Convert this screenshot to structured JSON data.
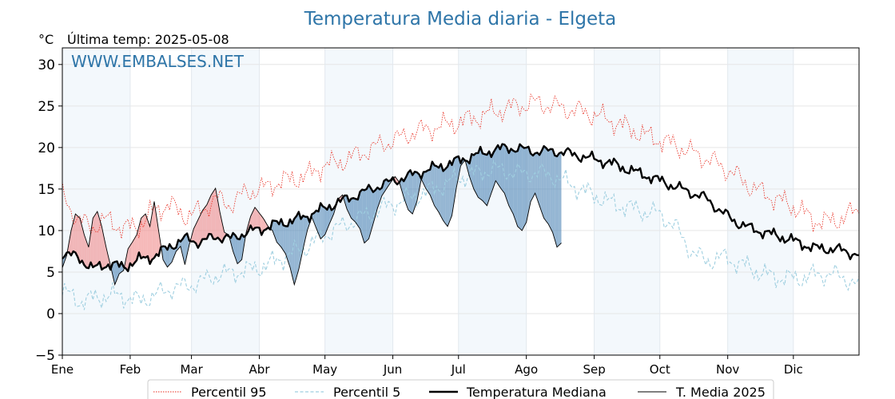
{
  "chart_data": {
    "type": "line",
    "title": "Temperatura Media diaria - Elgeta",
    "unit": "°C",
    "last_temp": "Última temp: 2025-05-08",
    "watermark": "WWW.EMBALSES.NET",
    "ylim": [
      -5,
      32
    ],
    "yticks": [
      -5,
      0,
      5,
      10,
      15,
      20,
      25,
      30
    ],
    "xlim_day": [
      1,
      365
    ],
    "grid": true,
    "legend_position": "bottom",
    "months": [
      "Ene",
      "Feb",
      "Mar",
      "Abr",
      "May",
      "Jun",
      "Jul",
      "Ago",
      "Sep",
      "Oct",
      "Nov",
      "Dic"
    ],
    "series": [
      {
        "name": "Percentil 95",
        "color": "#e8291c",
        "style": "dotted",
        "points": [
          [
            1,
            14.5
          ],
          [
            8,
            11.2
          ],
          [
            15,
            10.5
          ],
          [
            22,
            11.3
          ],
          [
            29,
            10.2
          ],
          [
            36,
            10.6
          ],
          [
            43,
            12.5
          ],
          [
            50,
            13.1
          ],
          [
            57,
            11.8
          ],
          [
            64,
            12.3
          ],
          [
            71,
            13.8
          ],
          [
            78,
            13.2
          ],
          [
            85,
            14.6
          ],
          [
            92,
            15.0
          ],
          [
            99,
            15.8
          ],
          [
            106,
            16.2
          ],
          [
            113,
            16.6
          ],
          [
            120,
            17.8
          ],
          [
            127,
            18.2
          ],
          [
            134,
            18.9
          ],
          [
            141,
            19.7
          ],
          [
            148,
            20.5
          ],
          [
            155,
            21.1
          ],
          [
            162,
            21.9
          ],
          [
            169,
            22.3
          ],
          [
            176,
            22.7
          ],
          [
            183,
            23.1
          ],
          [
            190,
            23.6
          ],
          [
            197,
            24.2
          ],
          [
            204,
            24.7
          ],
          [
            211,
            25.1
          ],
          [
            218,
            25.4
          ],
          [
            225,
            25.0
          ],
          [
            232,
            24.6
          ],
          [
            239,
            24.3
          ],
          [
            246,
            23.8
          ],
          [
            253,
            23.1
          ],
          [
            260,
            22.3
          ],
          [
            267,
            21.5
          ],
          [
            274,
            20.9
          ],
          [
            281,
            20.3
          ],
          [
            288,
            19.5
          ],
          [
            295,
            18.7
          ],
          [
            302,
            17.8
          ],
          [
            309,
            16.6
          ],
          [
            316,
            15.2
          ],
          [
            323,
            14.3
          ],
          [
            330,
            13.5
          ],
          [
            337,
            12.6
          ],
          [
            344,
            11.3
          ],
          [
            351,
            11.0
          ],
          [
            358,
            11.6
          ],
          [
            365,
            12.5
          ]
        ]
      },
      {
        "name": "Percentil 5",
        "color": "#9fcfe0",
        "style": "dashed",
        "points": [
          [
            1,
            2.8
          ],
          [
            8,
            1.5
          ],
          [
            15,
            1.8
          ],
          [
            22,
            2.2
          ],
          [
            29,
            2.1
          ],
          [
            36,
            1.5
          ],
          [
            43,
            2.2
          ],
          [
            50,
            3.0
          ],
          [
            57,
            3.3
          ],
          [
            64,
            3.8
          ],
          [
            71,
            4.6
          ],
          [
            78,
            4.9
          ],
          [
            85,
            5.2
          ],
          [
            92,
            5.6
          ],
          [
            99,
            6.4
          ],
          [
            106,
            7.3
          ],
          [
            113,
            8.1
          ],
          [
            120,
            9.4
          ],
          [
            127,
            10.3
          ],
          [
            134,
            11.2
          ],
          [
            141,
            12.0
          ],
          [
            148,
            12.8
          ],
          [
            155,
            13.5
          ],
          [
            162,
            14.1
          ],
          [
            169,
            14.8
          ],
          [
            176,
            15.6
          ],
          [
            183,
            16.4
          ],
          [
            190,
            16.9
          ],
          [
            197,
            17.4
          ],
          [
            204,
            17.2
          ],
          [
            211,
            16.8
          ],
          [
            218,
            17.0
          ],
          [
            225,
            16.6
          ],
          [
            232,
            15.7
          ],
          [
            239,
            14.8
          ],
          [
            246,
            14.0
          ],
          [
            253,
            13.2
          ],
          [
            260,
            12.8
          ],
          [
            267,
            12.3
          ],
          [
            274,
            12.0
          ],
          [
            281,
            10.5
          ],
          [
            288,
            7.6
          ],
          [
            295,
            6.3
          ],
          [
            302,
            6.8
          ],
          [
            309,
            6.2
          ],
          [
            316,
            5.4
          ],
          [
            323,
            4.6
          ],
          [
            330,
            4.3
          ],
          [
            337,
            4.2
          ],
          [
            344,
            4.6
          ],
          [
            351,
            4.8
          ],
          [
            358,
            4.4
          ],
          [
            365,
            3.2
          ]
        ]
      },
      {
        "name": "Temperatura Mediana",
        "color": "#000000",
        "style": "solid-bold",
        "points": [
          [
            1,
            7.3
          ],
          [
            8,
            6.8
          ],
          [
            15,
            5.4
          ],
          [
            22,
            6.0
          ],
          [
            29,
            5.6
          ],
          [
            36,
            6.5
          ],
          [
            43,
            6.9
          ],
          [
            50,
            8.1
          ],
          [
            57,
            9.0
          ],
          [
            64,
            8.6
          ],
          [
            71,
            9.3
          ],
          [
            78,
            9.0
          ],
          [
            85,
            9.8
          ],
          [
            92,
            10.2
          ],
          [
            99,
            10.8
          ],
          [
            106,
            11.2
          ],
          [
            113,
            11.8
          ],
          [
            120,
            12.6
          ],
          [
            127,
            13.4
          ],
          [
            134,
            14.1
          ],
          [
            141,
            14.9
          ],
          [
            148,
            15.6
          ],
          [
            155,
            16.2
          ],
          [
            162,
            16.8
          ],
          [
            169,
            17.4
          ],
          [
            176,
            17.9
          ],
          [
            183,
            18.5
          ],
          [
            190,
            19.1
          ],
          [
            197,
            19.6
          ],
          [
            204,
            20.0
          ],
          [
            211,
            19.8
          ],
          [
            218,
            19.5
          ],
          [
            225,
            19.6
          ],
          [
            232,
            19.3
          ],
          [
            239,
            18.9
          ],
          [
            246,
            18.5
          ],
          [
            253,
            18.0
          ],
          [
            260,
            17.3
          ],
          [
            267,
            16.7
          ],
          [
            274,
            16.0
          ],
          [
            281,
            15.3
          ],
          [
            288,
            14.6
          ],
          [
            295,
            13.9
          ],
          [
            302,
            12.3
          ],
          [
            309,
            11.0
          ],
          [
            316,
            10.2
          ],
          [
            323,
            9.7
          ],
          [
            330,
            9.2
          ],
          [
            337,
            8.6
          ],
          [
            344,
            7.9
          ],
          [
            351,
            7.8
          ],
          [
            358,
            7.6
          ],
          [
            365,
            7.0
          ]
        ]
      },
      {
        "name": "T. Media 2025",
        "color": "#000000",
        "style": "solid-thin",
        "points": [
          [
            1,
            5.5
          ],
          [
            3,
            7.0
          ],
          [
            5,
            10.0
          ],
          [
            7,
            12.0
          ],
          [
            9,
            11.5
          ],
          [
            11,
            9.5
          ],
          [
            13,
            8.0
          ],
          [
            15,
            11.5
          ],
          [
            17,
            12.3
          ],
          [
            19,
            10.5
          ],
          [
            21,
            8.0
          ],
          [
            23,
            5.8
          ],
          [
            25,
            3.5
          ],
          [
            27,
            4.8
          ],
          [
            29,
            5.2
          ],
          [
            31,
            7.8
          ],
          [
            33,
            8.6
          ],
          [
            35,
            9.5
          ],
          [
            37,
            11.5
          ],
          [
            39,
            12.0
          ],
          [
            41,
            10.5
          ],
          [
            43,
            13.5
          ],
          [
            45,
            10.0
          ],
          [
            47,
            6.5
          ],
          [
            49,
            5.6
          ],
          [
            51,
            6.2
          ],
          [
            53,
            7.5
          ],
          [
            55,
            8.1
          ],
          [
            57,
            5.9
          ],
          [
            59,
            8.3
          ],
          [
            61,
            10.2
          ],
          [
            63,
            11.3
          ],
          [
            65,
            12.4
          ],
          [
            67,
            13.1
          ],
          [
            69,
            14.3
          ],
          [
            71,
            15.1
          ],
          [
            73,
            12.2
          ],
          [
            75,
            9.8
          ],
          [
            77,
            9.5
          ],
          [
            79,
            7.5
          ],
          [
            81,
            6.0
          ],
          [
            83,
            6.5
          ],
          [
            85,
            9.8
          ],
          [
            87,
            11.7
          ],
          [
            89,
            12.8
          ],
          [
            91,
            12.1
          ],
          [
            93,
            11.4
          ],
          [
            95,
            10.5
          ],
          [
            97,
            10.0
          ],
          [
            99,
            8.6
          ],
          [
            101,
            8.0
          ],
          [
            103,
            7.2
          ],
          [
            105,
            5.6
          ],
          [
            107,
            3.5
          ],
          [
            109,
            5.3
          ],
          [
            111,
            7.8
          ],
          [
            113,
            10.1
          ],
          [
            115,
            11.6
          ],
          [
            117,
            10.3
          ],
          [
            119,
            9.0
          ],
          [
            121,
            9.5
          ],
          [
            123,
            10.8
          ],
          [
            125,
            12.0
          ],
          [
            127,
            13.8
          ],
          [
            129,
            14.3
          ],
          [
            131,
            12.6
          ],
          [
            133,
            11.5
          ],
          [
            135,
            11.0
          ],
          [
            137,
            10.2
          ],
          [
            139,
            8.5
          ],
          [
            141,
            9.0
          ],
          [
            143,
            10.8
          ],
          [
            145,
            12.7
          ],
          [
            147,
            14.2
          ],
          [
            149,
            15.0
          ],
          [
            151,
            15.8
          ],
          [
            153,
            16.5
          ],
          [
            155,
            15.8
          ],
          [
            157,
            14.0
          ],
          [
            159,
            12.5
          ],
          [
            161,
            12.0
          ],
          [
            163,
            13.5
          ],
          [
            165,
            16.2
          ],
          [
            167,
            15.1
          ],
          [
            169,
            14.3
          ],
          [
            171,
            13.0
          ],
          [
            173,
            12.2
          ],
          [
            175,
            11.2
          ],
          [
            177,
            10.5
          ],
          [
            179,
            11.8
          ],
          [
            181,
            15.1
          ],
          [
            183,
            17.8
          ],
          [
            185,
            18.5
          ],
          [
            187,
            16.5
          ],
          [
            189,
            15.0
          ],
          [
            191,
            14.0
          ],
          [
            193,
            13.6
          ],
          [
            195,
            13.0
          ],
          [
            197,
            14.5
          ],
          [
            199,
            16.0
          ],
          [
            201,
            15.2
          ],
          [
            203,
            14.5
          ],
          [
            205,
            13.0
          ],
          [
            207,
            12.0
          ],
          [
            209,
            10.5
          ],
          [
            211,
            10.0
          ],
          [
            213,
            11.0
          ],
          [
            215,
            13.5
          ],
          [
            217,
            14.5
          ],
          [
            219,
            13.0
          ],
          [
            221,
            11.5
          ],
          [
            223,
            10.8
          ],
          [
            225,
            9.8
          ],
          [
            227,
            8.0
          ],
          [
            229,
            8.5
          ]
        ]
      }
    ]
  },
  "legend": {
    "items": [
      "Percentil 95",
      "Percentil 5",
      "Temperatura Mediana",
      "T. Media 2025"
    ]
  }
}
